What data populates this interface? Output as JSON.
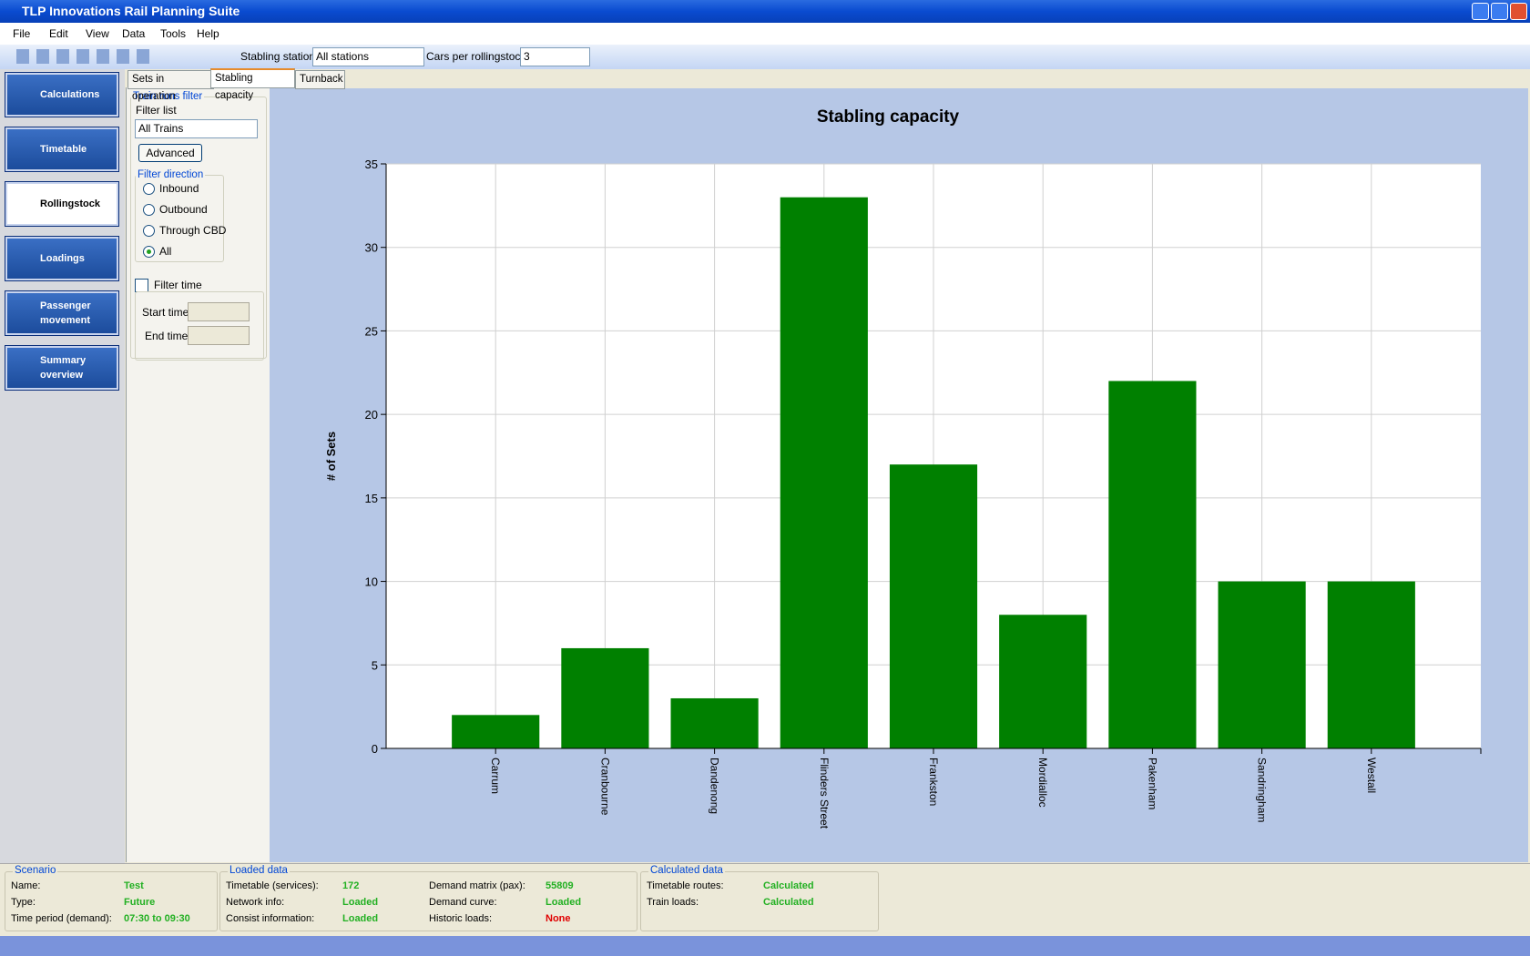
{
  "window": {
    "title": "TLP Innovations Rail Planning Suite"
  },
  "menu": [
    "File",
    "Edit",
    "View",
    "Data",
    "Tools",
    "Help"
  ],
  "toolbar": {
    "stabling_label": "Stabling station",
    "stabling_value": "All stations",
    "cars_label": "Cars per rollingstock",
    "cars_value": "3"
  },
  "nav": [
    "Calculations",
    "Timetable",
    "Rollingstock",
    "Loadings",
    "Passenger movement",
    "Summary overview"
  ],
  "tabs": [
    "Sets in operation",
    "Stabling capacity",
    "Turnback"
  ],
  "filter": {
    "group": "Train runs filter",
    "list_label": "Filter list",
    "list_value": "All Trains",
    "advanced": "Advanced",
    "direction_group": "Filter direction",
    "directions": [
      "Inbound",
      "Outbound",
      "Through CBD",
      "All"
    ],
    "filter_time": "Filter time",
    "start": "Start time",
    "end": "End time"
  },
  "chart_data": {
    "type": "bar",
    "title": "Stabling capacity",
    "y_label": "# of Sets",
    "categories": [
      "Carrum",
      "Cranbourne",
      "Dandenong",
      "Flinders Street",
      "Frankston",
      "Mordialloc",
      "Pakenham",
      "Sandringham",
      "Westall"
    ],
    "values": [
      2,
      6,
      3,
      33,
      17,
      8,
      22,
      10,
      10
    ],
    "color": "#008000",
    "ylim": [
      0,
      35
    ],
    "yticks": [
      0,
      5,
      10,
      15,
      20,
      25,
      30,
      35
    ],
    "grid": true
  },
  "status": [
    {
      "title": "Scenario",
      "columns": [
        [
          {
            "label": "Name:",
            "value": "Test",
            "color": "#22b022"
          },
          {
            "label": "Type:",
            "value": "Future",
            "color": "#22b022"
          },
          {
            "label": "Time period (demand):",
            "value": "07:30 to 09:30",
            "color": "#22b022"
          }
        ]
      ]
    },
    {
      "title": "Loaded data",
      "columns": [
        [
          {
            "label": "Timetable (services):",
            "value": 172,
            "color": "#22b022"
          },
          {
            "label": "Network info:",
            "value": "Loaded",
            "color": "#22b022"
          },
          {
            "label": "Consist information:",
            "value": "Loaded",
            "color": "#22b022"
          }
        ],
        [
          {
            "label": "Demand matrix (pax):",
            "value": 55809,
            "color": "#22b022"
          },
          {
            "label": "Demand curve:",
            "value": "Loaded",
            "color": "#22b022"
          },
          {
            "label": "Historic loads:",
            "value": "None",
            "color": "#e00000"
          }
        ]
      ]
    },
    {
      "title": "Calculated data",
      "columns": [
        [
          {
            "label": "Timetable routes:",
            "value": "Calculated",
            "color": "#22b022"
          },
          {
            "label": "Train loads:",
            "value": "Calculated",
            "color": "#22b022"
          }
        ]
      ]
    }
  ]
}
